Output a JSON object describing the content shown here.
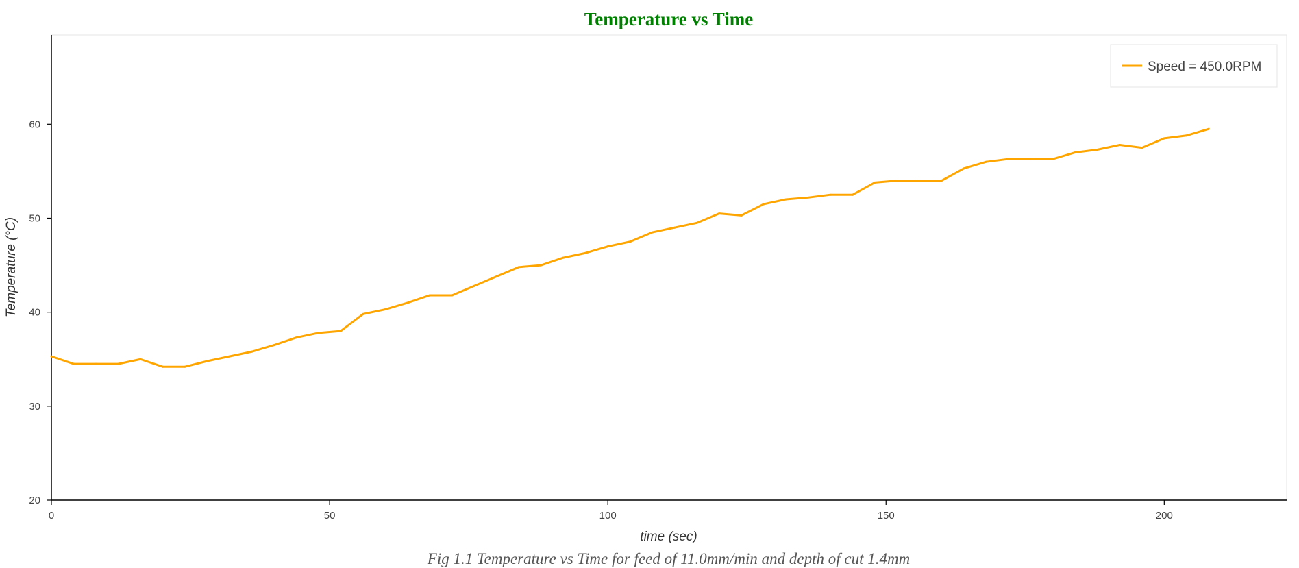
{
  "chart_data": {
    "type": "line",
    "title": "Temperature vs Time",
    "xlabel": "time (sec)",
    "ylabel": "Temperature (°C)",
    "caption": "Fig 1.1 Temperature vs Time for feed of 11.0mm/min and depth of cut 1.4mm",
    "xlim": [
      0,
      222
    ],
    "ylim": [
      20,
      69.5
    ],
    "xticks": [
      0,
      50,
      100,
      150,
      200
    ],
    "yticks": [
      20,
      30,
      40,
      50,
      60
    ],
    "legend_position": "top-right",
    "grid": false,
    "series": [
      {
        "name": "Speed = 450.0RPM",
        "color": "#ffa500",
        "x": [
          0,
          4,
          8,
          12,
          16,
          20,
          24,
          28,
          32,
          36,
          40,
          44,
          48,
          52,
          56,
          60,
          64,
          68,
          72,
          76,
          80,
          84,
          88,
          92,
          96,
          100,
          104,
          108,
          112,
          116,
          120,
          124,
          128,
          132,
          136,
          140,
          144,
          148,
          152,
          156,
          160,
          164,
          168,
          172,
          176,
          180,
          184,
          188,
          192,
          196,
          200,
          204,
          208
        ],
        "y": [
          35.3,
          34.5,
          34.5,
          34.5,
          35.0,
          34.2,
          34.2,
          34.8,
          35.3,
          35.8,
          36.5,
          37.3,
          37.8,
          38.0,
          39.8,
          40.3,
          41.0,
          41.8,
          41.8,
          42.8,
          43.8,
          44.8,
          45.0,
          45.8,
          46.3,
          47.0,
          47.5,
          48.5,
          49.0,
          49.5,
          50.5,
          50.3,
          51.5,
          52.0,
          52.2,
          52.5,
          52.5,
          53.8,
          54.0,
          54.0,
          54.0,
          55.3,
          56.0,
          56.3,
          56.3,
          56.3,
          57.0,
          57.3,
          57.8,
          57.5,
          58.5,
          58.8,
          59.5
        ]
      }
    ]
  }
}
